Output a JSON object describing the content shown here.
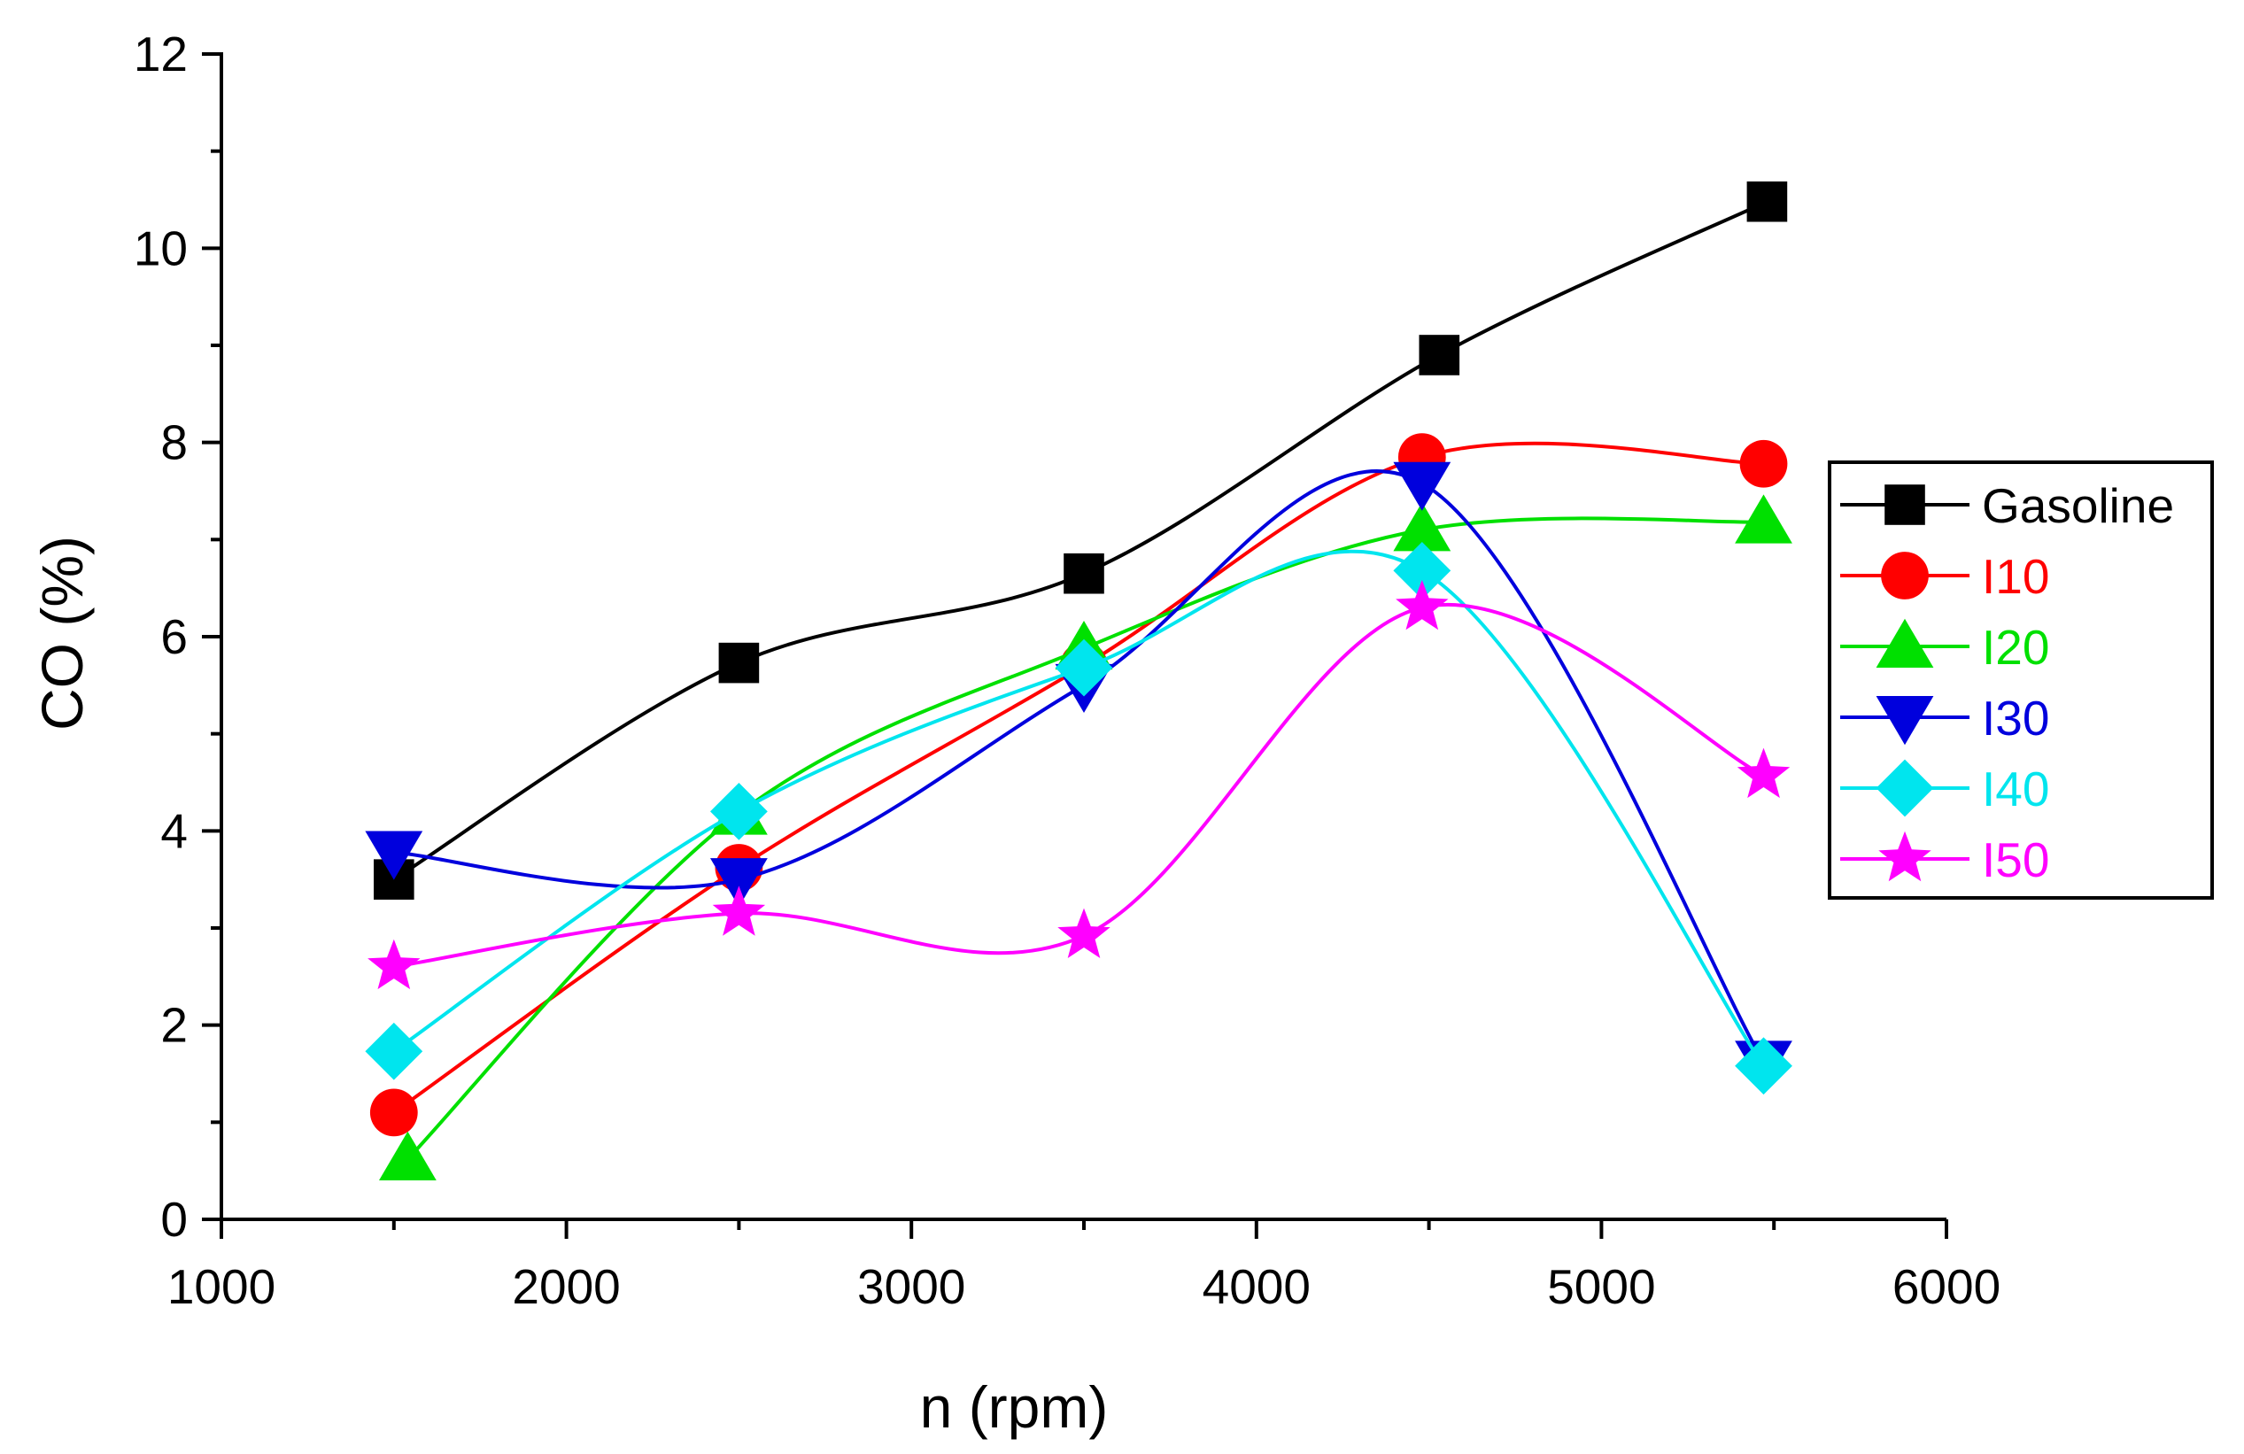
{
  "chart_data": {
    "type": "line",
    "title": "",
    "xlabel": "n (rpm)",
    "ylabel": "CO (%)",
    "xlim": [
      1000,
      6000
    ],
    "ylim": [
      0,
      12
    ],
    "xticks": [
      1000,
      2000,
      3000,
      4000,
      5000,
      6000
    ],
    "yticks": [
      0,
      2,
      4,
      6,
      8,
      10,
      12
    ],
    "grid": false,
    "legend_position": "right",
    "series": [
      {
        "name": "Gasoline",
        "color": "#000000",
        "marker": "square",
        "x": [
          1500,
          2500,
          3500,
          4530,
          5480
        ],
        "y": [
          3.5,
          5.73,
          6.65,
          8.9,
          10.48
        ]
      },
      {
        "name": "I10",
        "color": "#ff0000",
        "marker": "circle",
        "x": [
          1500,
          2500,
          3500,
          4480,
          5470
        ],
        "y": [
          1.1,
          3.62,
          5.7,
          7.85,
          7.78
        ]
      },
      {
        "name": "I20",
        "color": "#00e000",
        "marker": "triangle-up",
        "x": [
          1540,
          2500,
          3500,
          4480,
          5470
        ],
        "y": [
          0.62,
          4.18,
          5.88,
          7.1,
          7.18
        ]
      },
      {
        "name": "I30",
        "color": "#0000dd",
        "marker": "triangle-down",
        "x": [
          1500,
          2500,
          3500,
          4480,
          5470
        ],
        "y": [
          3.78,
          3.5,
          5.5,
          7.58,
          1.62
        ]
      },
      {
        "name": "I40",
        "color": "#00e5ee",
        "marker": "diamond",
        "x": [
          1500,
          2500,
          3500,
          4480,
          5470
        ],
        "y": [
          1.73,
          4.2,
          5.68,
          6.68,
          1.58
        ]
      },
      {
        "name": "I50",
        "color": "#ff00ff",
        "marker": "star",
        "x": [
          1500,
          2500,
          3500,
          4480,
          5470
        ],
        "y": [
          2.6,
          3.15,
          2.92,
          6.3,
          4.57
        ]
      }
    ]
  }
}
